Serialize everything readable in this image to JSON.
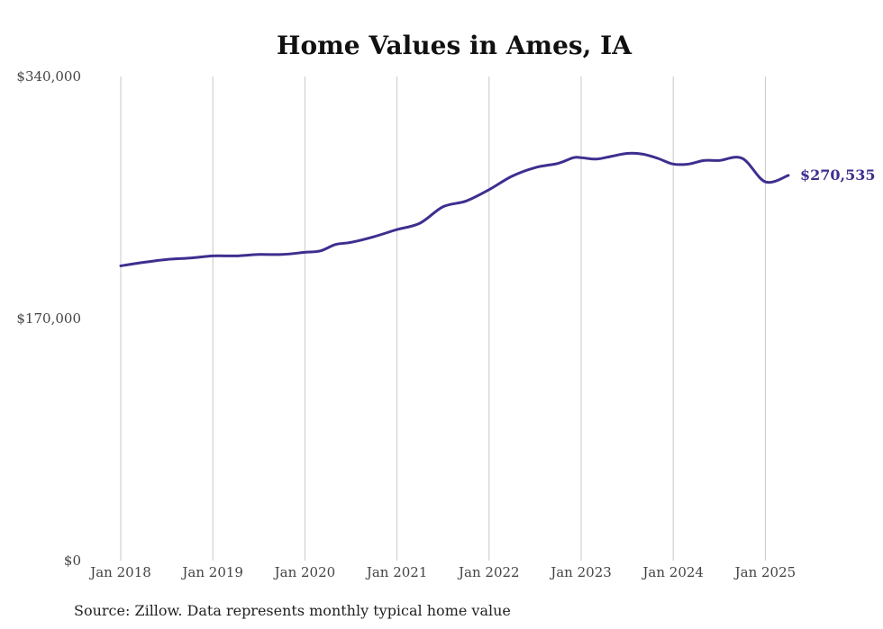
{
  "chart_data": {
    "type": "line",
    "title": "Home Values in Ames, IA",
    "xlabel": "",
    "ylabel": "",
    "ylim": [
      0,
      340000
    ],
    "y_ticks": [
      "$0",
      "$170,000",
      "$340,000"
    ],
    "y_tick_values": [
      0,
      170000,
      340000
    ],
    "x_ticks": [
      "Jan 2018",
      "Jan 2019",
      "Jan 2020",
      "Jan 2021",
      "Jan 2022",
      "Jan 2023",
      "Jan 2024",
      "Jan 2025"
    ],
    "x_tick_values": [
      2018.0,
      2019.0,
      2020.0,
      2021.0,
      2022.0,
      2023.0,
      2024.0,
      2025.0
    ],
    "xlim": [
      2018.0,
      2025.25
    ],
    "grid": "vertical",
    "series": [
      {
        "color": "#3d2f8f",
        "x": [
          2018.0,
          2018.25,
          2018.5,
          2018.75,
          2019.0,
          2019.25,
          2019.5,
          2019.75,
          2020.0,
          2020.167,
          2020.333,
          2020.5,
          2020.75,
          2021.0,
          2021.25,
          2021.5,
          2021.75,
          2022.0,
          2022.25,
          2022.5,
          2022.75,
          2022.917,
          2023.0,
          2023.167,
          2023.333,
          2023.5,
          2023.667,
          2023.833,
          2024.0,
          2024.167,
          2024.333,
          2024.5,
          2024.75,
          2025.0,
          2025.25
        ],
        "values": [
          207000,
          209500,
          211500,
          212500,
          214000,
          214000,
          215000,
          215000,
          216500,
          217500,
          222000,
          223500,
          227500,
          232500,
          237000,
          248500,
          252500,
          260500,
          270000,
          276000,
          279000,
          283000,
          283000,
          282000,
          284000,
          286000,
          285500,
          282500,
          278500,
          278500,
          281000,
          281000,
          282500,
          266000,
          270535
        ]
      }
    ],
    "end_label": "$270,535",
    "source": "Source: Zillow. Data represents monthly typical home value"
  }
}
